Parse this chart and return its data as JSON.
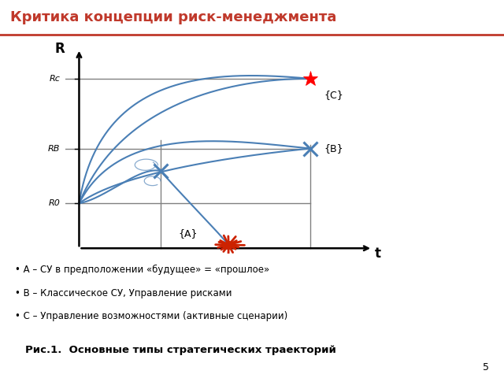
{
  "title": "Критика концепции риск-менеджмента",
  "title_color": "#c0392b",
  "title_fontsize": 13,
  "bg_color": "#ffffff",
  "line_color": "#4a7fb5",
  "axis_color": "#000000",
  "R_label": "R",
  "t_label": "t",
  "Rc_label": "Rc",
  "Rb_label": "RB",
  "R0_label": "R0",
  "C_label": "{C}",
  "B_label": "{B}",
  "A_label": "{A}",
  "bullet1": "• А – СУ в предположении «будущее» = «прошлое»",
  "bullet2": "• В – Классическое СУ, Управление рисками",
  "bullet3": "• С – Управление возможностями (активные сценарии)",
  "caption": "Рис.1.  Основные типы стратегических траекторий",
  "page_num": "5",
  "red_line_color": "#c0392b",
  "gray_line_color": "#808080"
}
